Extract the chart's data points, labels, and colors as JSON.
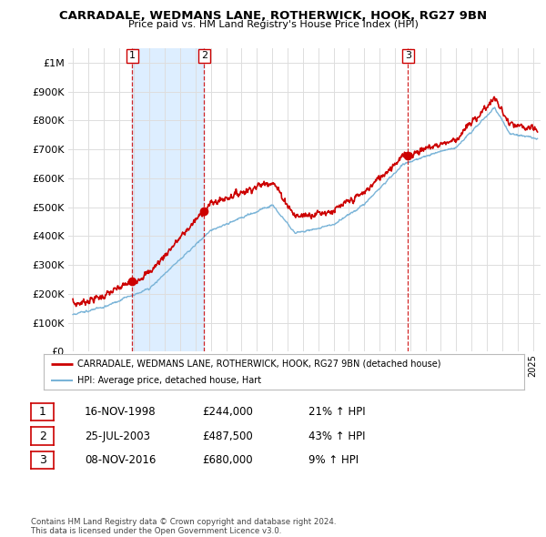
{
  "title": "CARRADALE, WEDMANS LANE, ROTHERWICK, HOOK, RG27 9BN",
  "subtitle": "Price paid vs. HM Land Registry's House Price Index (HPI)",
  "ylim": [
    0,
    1050000
  ],
  "yticks": [
    0,
    100000,
    200000,
    300000,
    400000,
    500000,
    600000,
    700000,
    800000,
    900000,
    1000000
  ],
  "ytick_labels": [
    "£0",
    "£100K",
    "£200K",
    "£300K",
    "£400K",
    "£500K",
    "£600K",
    "£700K",
    "£800K",
    "£900K",
    "£1M"
  ],
  "hpi_color": "#7ab4d8",
  "price_color": "#cc0000",
  "shade_color": "#ddeeff",
  "background_color": "#ffffff",
  "grid_color": "#dddddd",
  "sale_dates": [
    1998.88,
    2003.56,
    2016.85
  ],
  "sale_prices": [
    244000,
    487500,
    680000
  ],
  "sale_labels": [
    "1",
    "2",
    "3"
  ],
  "legend_label_price": "CARRADALE, WEDMANS LANE, ROTHERWICK, HOOK, RG27 9BN (detached house)",
  "legend_label_hpi": "HPI: Average price, detached house, Hart",
  "table_rows": [
    {
      "num": "1",
      "date": "16-NOV-1998",
      "price": "£244,000",
      "change": "21% ↑ HPI"
    },
    {
      "num": "2",
      "date": "25-JUL-2003",
      "price": "£487,500",
      "change": "43% ↑ HPI"
    },
    {
      "num": "3",
      "date": "08-NOV-2016",
      "price": "£680,000",
      "change": "9% ↑ HPI"
    }
  ],
  "footer": "Contains HM Land Registry data © Crown copyright and database right 2024.\nThis data is licensed under the Open Government Licence v3.0.",
  "xmin": 1994.7,
  "xmax": 2025.5
}
